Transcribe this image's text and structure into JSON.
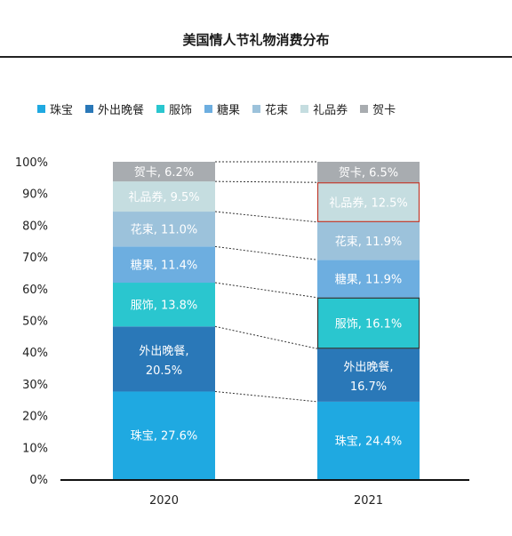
{
  "chart_data": {
    "type": "bar",
    "stacked": true,
    "title": "美国情人节礼物消费分布",
    "categories": [
      "2020",
      "2021"
    ],
    "ylim": [
      0,
      100
    ],
    "yticks": [
      "0%",
      "10%",
      "20%",
      "30%",
      "40%",
      "50%",
      "60%",
      "70%",
      "80%",
      "90%",
      "100%"
    ],
    "legend_position": "top",
    "series": [
      {
        "name": "珠宝",
        "color": "#1fa9e1",
        "values": [
          27.6,
          24.4
        ],
        "labels": [
          "珠宝, 27.6%",
          "珠宝, 24.4%"
        ]
      },
      {
        "name": "外出晚餐",
        "color": "#2a78b8",
        "values": [
          20.5,
          16.7
        ],
        "labels": [
          "外出晚餐,|20.5%",
          "外出晚餐,|16.7%"
        ]
      },
      {
        "name": "服饰",
        "color": "#2ac6cf",
        "values": [
          13.8,
          16.1
        ],
        "labels": [
          "服饰, 13.8%",
          "服饰, 16.1%"
        ]
      },
      {
        "name": "糖果",
        "color": "#6daee0",
        "values": [
          11.4,
          11.9
        ],
        "labels": [
          "糖果, 11.4%",
          "糖果, 11.9%"
        ]
      },
      {
        "name": "花束",
        "color": "#9cc2db",
        "values": [
          11.0,
          11.9
        ],
        "labels": [
          "花束, 11.0%",
          "花束, 11.9%"
        ]
      },
      {
        "name": "礼品券",
        "color": "#c5dde0",
        "values": [
          9.5,
          12.5
        ],
        "labels": [
          "礼品券, 9.5%",
          "礼品券, 12.5%"
        ]
      },
      {
        "name": "贺卡",
        "color": "#a8acb0",
        "values": [
          6.2,
          6.5
        ],
        "labels": [
          "贺卡, 6.2%",
          "贺卡, 6.5%"
        ]
      }
    ],
    "highlighted": [
      {
        "category": "2021",
        "series": "礼品券",
        "color": "#c0392b"
      },
      {
        "category": "2021",
        "series": "服饰",
        "color": "#333333"
      }
    ]
  }
}
